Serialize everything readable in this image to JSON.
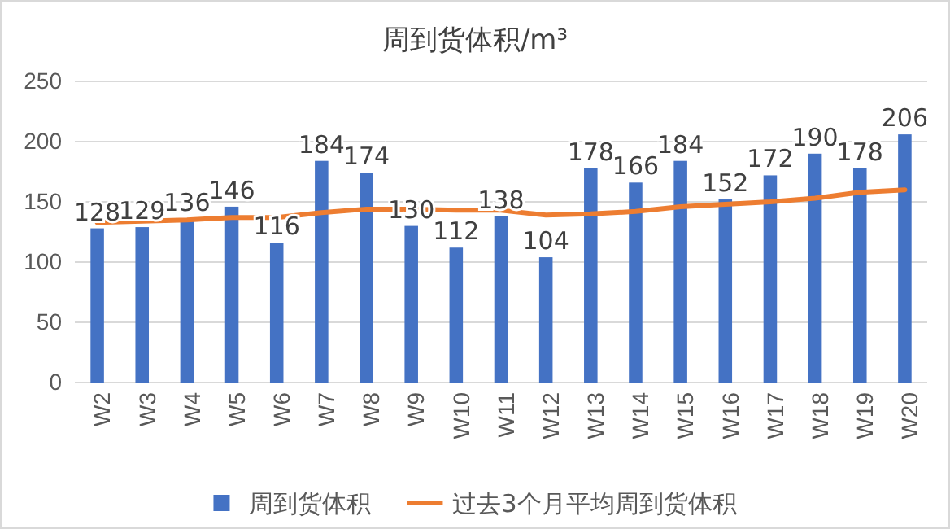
{
  "chart_data": {
    "type": "bar",
    "title": "周到货体积/m³",
    "categories": [
      "W2",
      "W3",
      "W4",
      "W5",
      "W6",
      "W7",
      "W8",
      "W9",
      "W10",
      "W11",
      "W12",
      "W13",
      "W14",
      "W15",
      "W16",
      "W17",
      "W18",
      "W19",
      "W20"
    ],
    "series": [
      {
        "name": "周到货体积",
        "color": "#4472c4",
        "values": [
          128,
          129,
          136,
          146,
          116,
          184,
          174,
          130,
          112,
          138,
          104,
          178,
          166,
          184,
          152,
          172,
          190,
          178,
          206
        ],
        "value_labels": [
          "128",
          "129",
          "136",
          "146",
          "116",
          "184",
          "174",
          "130",
          "112",
          "138",
          "104",
          "178",
          "166",
          "184",
          "152",
          "172",
          "190",
          "178",
          "206"
        ]
      },
      {
        "name": "过去3个月平均周到货体积",
        "type": "line",
        "color": "#ed7d31",
        "values": [
          133,
          134,
          135,
          137,
          137,
          141,
          144,
          144,
          143,
          143,
          139,
          140,
          142,
          146,
          148,
          150,
          153,
          158,
          160
        ]
      }
    ],
    "ylim": [
      0,
      250
    ],
    "yticks": [
      0,
      50,
      100,
      150,
      200,
      250
    ],
    "grid": "y",
    "legend": "bottom",
    "marker": "none"
  }
}
